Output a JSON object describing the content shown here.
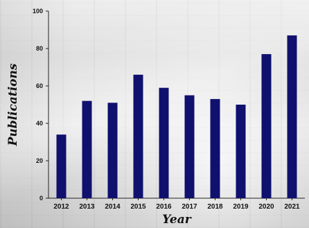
{
  "chart_data": {
    "type": "bar",
    "title": "",
    "xlabel": "Year",
    "ylabel": "Publications",
    "ylim": [
      0,
      100
    ],
    "yticks": [
      0,
      20,
      40,
      60,
      80,
      100
    ],
    "categories": [
      "2012",
      "2013",
      "2014",
      "2015",
      "2016",
      "2017",
      "2018",
      "2019",
      "2020",
      "2021"
    ],
    "values": [
      34,
      52,
      51,
      66,
      59,
      55,
      53,
      50,
      77,
      87
    ],
    "bar_color": "#10106e",
    "grid": false,
    "legend": "none"
  }
}
